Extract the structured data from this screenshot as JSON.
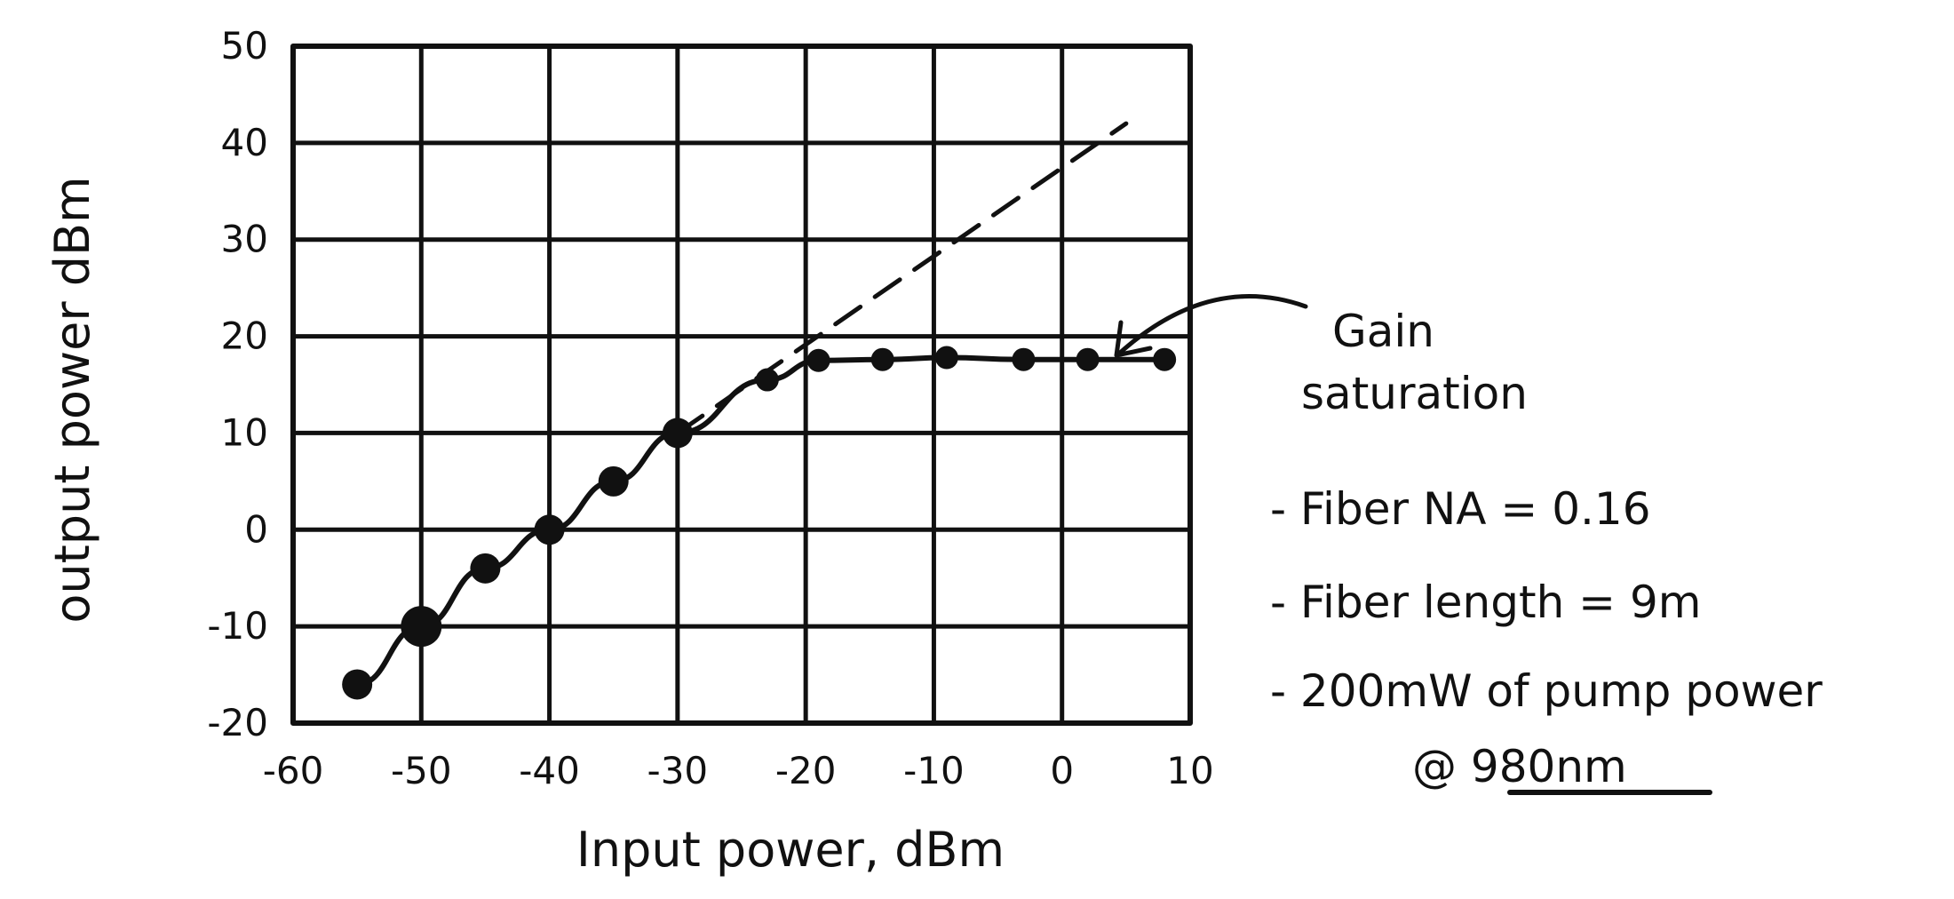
{
  "chart_data": {
    "type": "scatter",
    "title": "",
    "xlabel": "Input power, dBm",
    "ylabel": "output power dBm",
    "xlim": [
      -60,
      10
    ],
    "ylim": [
      -20,
      50
    ],
    "grid": true,
    "x_tick_values": [
      -60,
      -50,
      -40,
      -30,
      -20,
      -10,
      0,
      10
    ],
    "x_tick_labels": [
      "-60",
      "-50",
      "-40",
      "-30",
      "-20",
      "-10",
      "0",
      "10"
    ],
    "y_tick_values": [
      50,
      40,
      30,
      20,
      10,
      0,
      -10,
      -20
    ],
    "y_tick_labels": [
      "50",
      "40",
      "30",
      "20",
      "10",
      "0",
      "-10",
      "-20"
    ],
    "series": [
      {
        "style": "points-with-line",
        "x": [
          -55,
          -50,
          -45,
          -40,
          -35,
          -30,
          -23,
          -19,
          -14,
          -9,
          -3,
          2,
          8
        ],
        "y": [
          -16,
          -10,
          -4,
          0,
          5,
          10,
          15.5,
          17.5,
          17.6,
          17.8,
          17.6,
          17.6,
          17.6
        ]
      },
      {
        "style": "dashed",
        "x": [
          -30,
          5
        ],
        "y": [
          10,
          42
        ]
      }
    ],
    "annotations": [
      {
        "text": "Gain saturation",
        "arrow_target": [
          -8,
          18
        ]
      }
    ],
    "notes": [
      "- Fiber NA = 0.16",
      "- Fiber length = 9m",
      "- 200mW of pump power",
      "@ 980nm"
    ]
  }
}
